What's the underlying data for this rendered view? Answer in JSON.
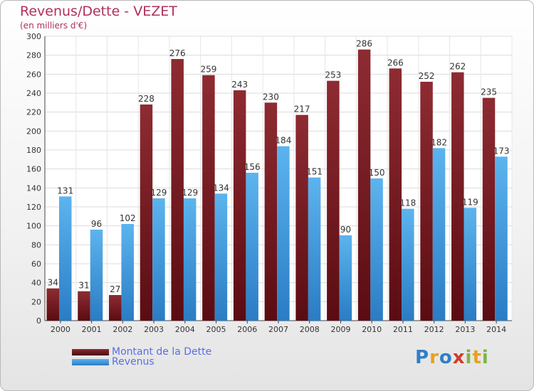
{
  "title": "Revenus/Dette - VEZET",
  "subtitle": "(en milliers d'€)",
  "colors": {
    "dette": "#7a1e24",
    "revenus": "#3d9ae0",
    "title": "#b0305a",
    "legend_text": "#5a6ee6"
  },
  "legend": [
    {
      "label": "Montant de la Dette",
      "color": "#7a1e24"
    },
    {
      "label": "Revenus",
      "color": "#3d9ae0"
    }
  ],
  "logo": {
    "letters": [
      "P",
      "r",
      "o",
      "x",
      "i",
      "t",
      "i"
    ],
    "colors": [
      "#2f7fc8",
      "#e8a020",
      "#2f7fc8",
      "#d23a2a",
      "#7ab648",
      "#e8a020",
      "#7ab648"
    ]
  },
  "chart_data": {
    "type": "bar",
    "categories": [
      "2000",
      "2001",
      "2002",
      "2003",
      "2004",
      "2005",
      "2006",
      "2007",
      "2008",
      "2009",
      "2010",
      "2011",
      "2012",
      "2013",
      "2014"
    ],
    "series": [
      {
        "name": "Montant de la Dette",
        "values": [
          34,
          31,
          27,
          228,
          276,
          259,
          243,
          230,
          217,
          253,
          286,
          266,
          252,
          262,
          235
        ]
      },
      {
        "name": "Revenus",
        "values": [
          131,
          96,
          102,
          129,
          129,
          134,
          156,
          184,
          151,
          90,
          150,
          118,
          182,
          119,
          173
        ]
      }
    ],
    "ylim": [
      0,
      300
    ],
    "yticks": [
      0,
      20,
      40,
      60,
      80,
      100,
      120,
      140,
      160,
      180,
      200,
      220,
      240,
      260,
      280,
      300
    ],
    "grid": true,
    "legend_position": "bottom-left"
  }
}
